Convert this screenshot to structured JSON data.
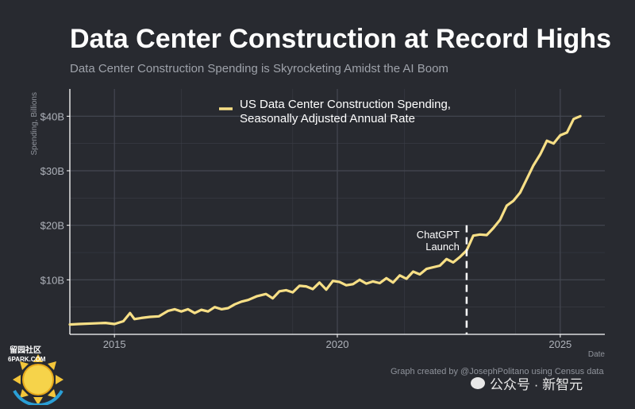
{
  "header": {
    "title": "Data Center Construction at Record Highs",
    "subtitle": "Data Center Construction Spending is Skyrocketing Amidst the AI Boom"
  },
  "credit": "Graph created by @JosephPolitano using Census data",
  "watermark": {
    "label": "公众号 · 新智元",
    "icon": "wechat-icon"
  },
  "logo": {
    "text": "留园社区",
    "sub": "6PARK.COM",
    "icon": "sun-logo-icon"
  },
  "colors": {
    "background": "#282a30",
    "line": "#f7df86",
    "grid": "#3b3e46",
    "text": "#ffffff",
    "muted": "#9ea2aa"
  },
  "chart_data": {
    "type": "line",
    "title": "Data Center Construction at Record Highs",
    "subtitle": "Data Center Construction Spending is Skyrocketing Amidst the AI Boom",
    "xlabel": "Date",
    "ylabel": "Spending, Billions",
    "xlim": [
      2014.0,
      2026.0
    ],
    "ylim": [
      0,
      45
    ],
    "x_ticks": [
      2015,
      2020,
      2025
    ],
    "x_tick_labels": [
      "2015",
      "2020",
      "2025"
    ],
    "y_ticks": [
      10,
      20,
      30,
      40
    ],
    "y_tick_labels": [
      "$10B",
      "$20B",
      "$30B",
      "$40B"
    ],
    "grid": true,
    "legend_position": "top-center",
    "series": [
      {
        "name": "US Data Center Construction Spending, Seasonally Adjusted Annual Rate",
        "color": "#f7df86",
        "x": [
          2014.0,
          2014.2,
          2014.5,
          2014.8,
          2015.0,
          2015.2,
          2015.35,
          2015.45,
          2015.6,
          2015.8,
          2016.0,
          2016.2,
          2016.35,
          2016.5,
          2016.65,
          2016.8,
          2016.95,
          2017.1,
          2017.25,
          2017.4,
          2017.55,
          2017.7,
          2017.85,
          2018.0,
          2018.2,
          2018.4,
          2018.55,
          2018.7,
          2018.85,
          2019.0,
          2019.15,
          2019.3,
          2019.45,
          2019.6,
          2019.75,
          2019.9,
          2020.05,
          2020.2,
          2020.35,
          2020.5,
          2020.65,
          2020.8,
          2020.95,
          2021.1,
          2021.25,
          2021.4,
          2021.55,
          2021.7,
          2021.85,
          2022.0,
          2022.15,
          2022.3,
          2022.45,
          2022.6,
          2022.75,
          2022.9,
          2023.05,
          2023.2,
          2023.35,
          2023.5,
          2023.65,
          2023.8,
          2023.95,
          2024.1,
          2024.25,
          2024.4,
          2024.55,
          2024.7,
          2024.85,
          2025.0,
          2025.15,
          2025.3,
          2025.45
        ],
        "values": [
          1.8,
          1.9,
          2.0,
          2.1,
          1.9,
          2.4,
          3.9,
          2.8,
          3.0,
          3.2,
          3.3,
          4.3,
          4.6,
          4.2,
          4.6,
          3.9,
          4.5,
          4.2,
          5.0,
          4.6,
          4.8,
          5.5,
          6.0,
          6.3,
          7.0,
          7.4,
          6.6,
          7.9,
          8.1,
          7.7,
          8.9,
          8.8,
          8.3,
          9.5,
          8.2,
          9.8,
          9.6,
          9.0,
          9.2,
          10.0,
          9.3,
          9.7,
          9.4,
          10.3,
          9.5,
          10.8,
          10.2,
          11.5,
          11.0,
          12.0,
          12.3,
          12.6,
          13.8,
          13.2,
          14.2,
          15.4,
          18.1,
          18.3,
          18.2,
          19.5,
          21.0,
          23.6,
          24.5,
          26.0,
          28.5,
          31.0,
          33.0,
          35.5,
          35.0,
          36.5,
          37.0,
          39.5,
          40.0
        ]
      }
    ],
    "annotations": [
      {
        "type": "vline",
        "x": 2022.9,
        "text_lines": [
          "ChatGPT",
          "Launch"
        ]
      }
    ]
  }
}
